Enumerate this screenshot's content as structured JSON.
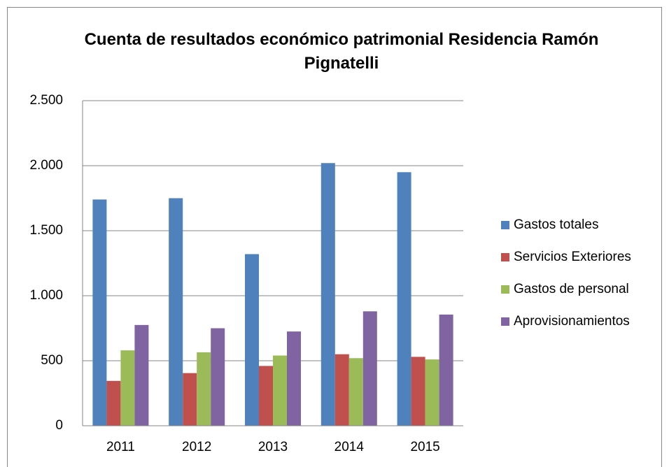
{
  "chart_data": {
    "type": "bar",
    "title": "Cuenta de resultados económico patrimonial Residencia Ramón Pignatelli",
    "categories": [
      "2011",
      "2012",
      "2013",
      "2014",
      "2015"
    ],
    "series": [
      {
        "name": "Gastos totales",
        "color": "#4f81bd",
        "values": [
          1740,
          1750,
          1320,
          2020,
          1950
        ]
      },
      {
        "name": "Servicios Exteriores",
        "color": "#c0504d",
        "values": [
          345,
          405,
          460,
          550,
          530
        ]
      },
      {
        "name": "Gastos de personal",
        "color": "#9bbb59",
        "values": [
          580,
          565,
          540,
          520,
          510
        ]
      },
      {
        "name": "Aprovisionamientos",
        "color": "#8064a2",
        "values": [
          775,
          750,
          725,
          880,
          855
        ]
      }
    ],
    "ylim": [
      0,
      2500
    ],
    "yticks": [
      0,
      500,
      {
        "value": 1000,
        "label": "1.000"
      },
      {
        "value": 1500,
        "label": "1.500"
      },
      {
        "value": 2000,
        "label": "2.000"
      },
      {
        "value": 2500,
        "label": "2.500"
      }
    ],
    "grid": true,
    "legend": "right"
  }
}
